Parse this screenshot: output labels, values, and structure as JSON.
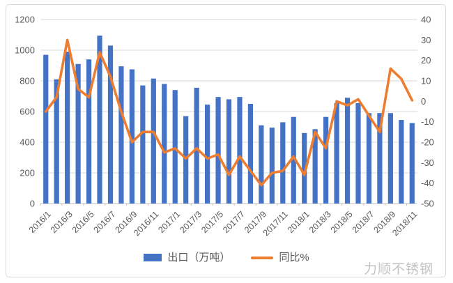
{
  "legend": {
    "bars_label": "出口（万吨）",
    "line_label": "同比%"
  },
  "watermark": "力顺不锈钢",
  "colors": {
    "bar": "#4472C4",
    "line": "#ED7D31",
    "grid": "#D9D9D9",
    "axis": "#BFBFBF",
    "tick": "#BFBFBF",
    "label": "#595959",
    "watermark": "#C3C3C3"
  },
  "chart_data": {
    "type": "bar+line combo",
    "title": "",
    "xlabel": "",
    "ylabel_left": "出口（万吨）",
    "ylabel_right": "同比%",
    "grid": true,
    "legend_position": "bottom",
    "categories": [
      "2016/1",
      "2016/2",
      "2016/3",
      "2016/4",
      "2016/5",
      "2016/6",
      "2016/7",
      "2016/8",
      "2016/9",
      "2016/10",
      "2016/11",
      "2016/12",
      "2017/1",
      "2017/2",
      "2017/3",
      "2017/4",
      "2017/5",
      "2017/6",
      "2017/7",
      "2017/8",
      "2017/9",
      "2017/10",
      "2017/11",
      "2017/12",
      "2018/1",
      "2018/2",
      "2018/3",
      "2018/4",
      "2018/5",
      "2018/6",
      "2018/7",
      "2018/8",
      "2018/9",
      "2018/10",
      "2018/11"
    ],
    "x_tick_labels_shown": [
      "2016/1",
      "2016/3",
      "2016/5",
      "2016/7",
      "2016/9",
      "2016/11",
      "2017/1",
      "2017/3",
      "2017/5",
      "2017/7",
      "2017/9",
      "2017/11",
      "2018/1",
      "2018/3",
      "2018/5",
      "2018/7",
      "2018/9",
      "2018/11"
    ],
    "series": [
      {
        "name": "出口（万吨）",
        "type": "bar",
        "axis": "left",
        "values": [
          970,
          810,
          990,
          910,
          940,
          1095,
          1030,
          895,
          875,
          770,
          815,
          780,
          740,
          570,
          755,
          645,
          695,
          680,
          695,
          650,
          510,
          495,
          530,
          565,
          460,
          485,
          565,
          655,
          690,
          655,
          590,
          590,
          590,
          545,
          525
        ]
      },
      {
        "name": "同比%",
        "type": "line",
        "axis": "right",
        "values": [
          -5,
          2,
          30,
          6,
          2,
          24,
          12,
          -5,
          -20,
          -15,
          -15,
          -25,
          -23,
          -28,
          -23,
          -28,
          -26,
          -36,
          -27,
          -34,
          -41,
          -35,
          -34,
          -27,
          -36,
          -15,
          -23,
          0,
          -2,
          1,
          -7,
          -15,
          16,
          11,
          0.5
        ]
      }
    ],
    "left_axis": {
      "min": 0,
      "max": 1200,
      "step": 200,
      "ticks": [
        1200,
        1000,
        800,
        600,
        400,
        200,
        0
      ]
    },
    "right_axis": {
      "min": -50,
      "max": 40,
      "step": 10,
      "ticks": [
        40,
        30,
        20,
        10,
        0,
        -10,
        -20,
        -30,
        -40,
        -50
      ]
    }
  }
}
